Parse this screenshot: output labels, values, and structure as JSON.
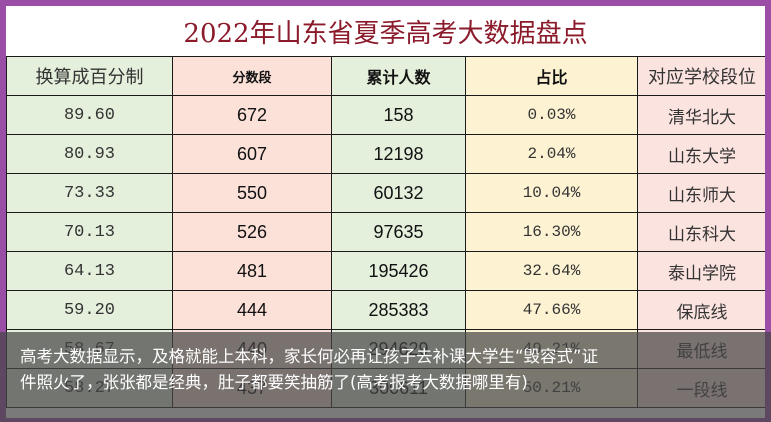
{
  "title": "2022年山东省夏季高考大数据盘点",
  "table": {
    "headers": [
      "换算成百分制",
      "分数段",
      "累计人数",
      "占比",
      "对应学校段位"
    ],
    "rows": [
      {
        "conv": "89.60",
        "score": "672",
        "cum": "158",
        "pct": "0.03%",
        "school": "清华北大"
      },
      {
        "conv": "80.93",
        "score": "607",
        "cum": "12198",
        "pct": "2.04%",
        "school": "山东大学"
      },
      {
        "conv": "73.33",
        "score": "550",
        "cum": "60132",
        "pct": "10.04%",
        "school": "山东师大"
      },
      {
        "conv": "70.13",
        "score": "526",
        "cum": "97635",
        "pct": "16.30%",
        "school": "山东科大"
      },
      {
        "conv": "64.13",
        "score": "481",
        "cum": "195426",
        "pct": "32.64%",
        "school": "泰山学院"
      },
      {
        "conv": "59.20",
        "score": "444",
        "cum": "285383",
        "pct": "47.66%",
        "school": "保底线"
      },
      {
        "conv": "58.67",
        "score": "440",
        "cum": "294629",
        "pct": "49.21%",
        "school": "最低线"
      },
      {
        "conv": "58.27",
        "score": "437",
        "cum": "300611",
        "pct": "50.21%",
        "school": "一段线"
      }
    ]
  },
  "caption": {
    "line1": "高考大数据显示，及格就能上本科，家长何必再让孩子去补课大学生“毁容式”证",
    "line2": "件照火了，张张都是经典，肚子都要笑抽筋了(高考报考大数据哪里有)"
  },
  "colors": {
    "border": "#9a4ea6",
    "title": "#8b1a2b",
    "green": "#e4efdc",
    "peach": "#fbe1d8",
    "yellow": "#fdf3d3",
    "pink": "#fbe3df"
  }
}
